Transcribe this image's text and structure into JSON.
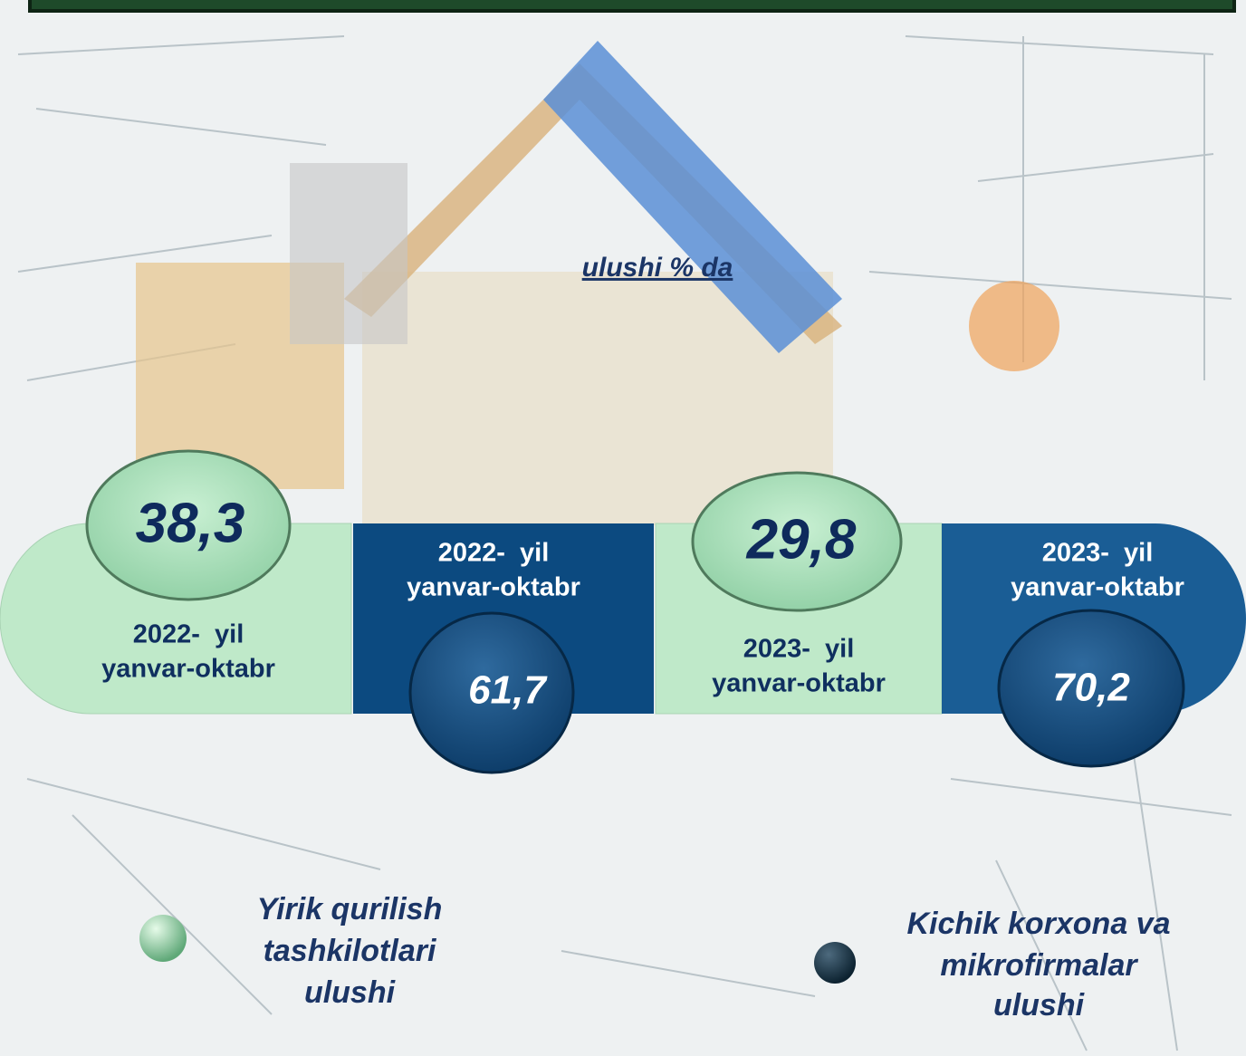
{
  "unit_label": "ulushi % da",
  "periods": [
    {
      "line1": "2022-  yil",
      "line2": "yanvar-oktabr",
      "value": "38,3"
    },
    {
      "line1": "2022-  yil",
      "line2": "yanvar-oktabr",
      "value": "61,7"
    },
    {
      "line1": "2023-  yil",
      "line2": "yanvar-oktabr",
      "value": "29,8"
    },
    {
      "line1": "2023-  yil",
      "line2": "yanvar-oktabr",
      "value": "70,2"
    }
  ],
  "legend": [
    {
      "lines": [
        "Yirik qurilish",
        "tashkilotlari",
        "ulushi"
      ]
    },
    {
      "lines": [
        "Kichik korxona va",
        "mikrofirmalar",
        "ulushi"
      ]
    }
  ]
}
